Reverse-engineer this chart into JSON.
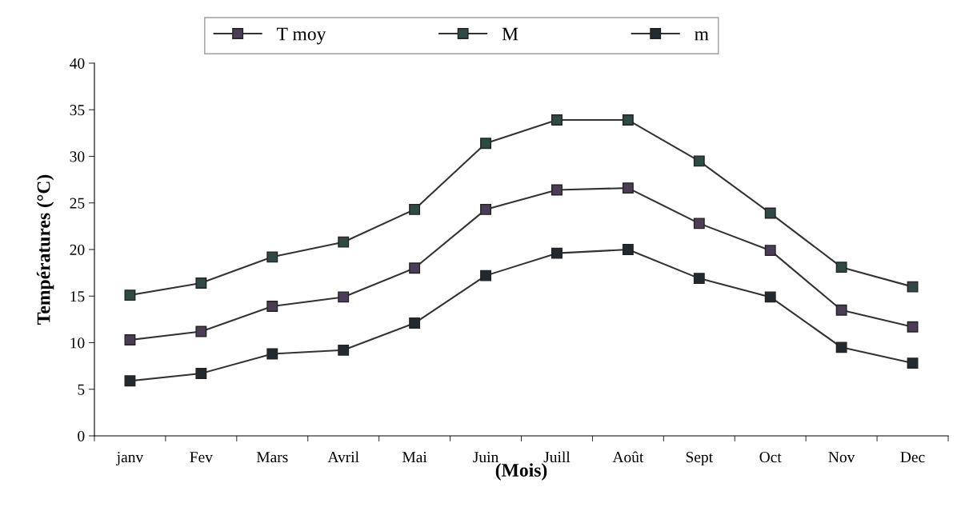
{
  "chart_data": {
    "type": "line",
    "xlabel": "(Mois)",
    "ylabel": "Températures (°C)",
    "categories": [
      "janv",
      "Fev",
      "Mars",
      "Avril",
      "Mai",
      "Juin",
      "Juill",
      "Août",
      "Sept",
      "Oct",
      "Nov",
      "Dec"
    ],
    "series": [
      {
        "name": "T moy",
        "color": "#4a3d55",
        "values": [
          10.3,
          11.2,
          13.9,
          14.9,
          18.0,
          24.3,
          26.4,
          26.6,
          22.8,
          19.9,
          13.5,
          11.7
        ]
      },
      {
        "name": "M",
        "color": "#2f4a44",
        "values": [
          15.1,
          16.4,
          19.2,
          20.8,
          24.3,
          31.4,
          33.9,
          33.9,
          29.5,
          23.9,
          18.1,
          16.0
        ]
      },
      {
        "name": "m",
        "color": "#222a30",
        "values": [
          5.9,
          6.7,
          8.8,
          9.2,
          12.1,
          17.2,
          19.6,
          20.0,
          16.9,
          14.9,
          9.5,
          7.8
        ]
      }
    ],
    "ylim": [
      0,
      40
    ],
    "yticks": [
      0,
      5,
      10,
      15,
      20,
      25,
      30,
      35,
      40
    ],
    "grid": false,
    "legend": "top",
    "marker": "square",
    "line_style": "solid"
  }
}
